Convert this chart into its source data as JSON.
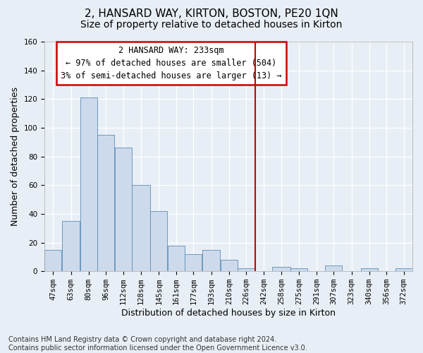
{
  "title": "2, HANSARD WAY, KIRTON, BOSTON, PE20 1QN",
  "subtitle": "Size of property relative to detached houses in Kirton",
  "xlabel": "Distribution of detached houses by size in Kirton",
  "ylabel": "Number of detached properties",
  "footer_line1": "Contains HM Land Registry data © Crown copyright and database right 2024.",
  "footer_line2": "Contains public sector information licensed under the Open Government Licence v3.0.",
  "bar_labels": [
    "47sqm",
    "63sqm",
    "80sqm",
    "96sqm",
    "112sqm",
    "128sqm",
    "145sqm",
    "161sqm",
    "177sqm",
    "193sqm",
    "210sqm",
    "226sqm",
    "242sqm",
    "258sqm",
    "275sqm",
    "291sqm",
    "307sqm",
    "323sqm",
    "340sqm",
    "356sqm",
    "372sqm"
  ],
  "bar_values": [
    15,
    35,
    121,
    95,
    86,
    60,
    42,
    18,
    12,
    15,
    8,
    2,
    0,
    3,
    2,
    0,
    4,
    0,
    2,
    0,
    2
  ],
  "bar_color": "#cddaeb",
  "bar_edge_color": "#5b8db8",
  "background_color": "#e8eef5",
  "grid_color": "#ffffff",
  "vline_x": 242,
  "bin_edges": [
    47,
    63,
    80,
    96,
    112,
    128,
    145,
    161,
    177,
    193,
    210,
    226,
    242,
    258,
    275,
    291,
    307,
    323,
    340,
    356,
    372,
    388
  ],
  "annotation_title": "2 HANSARD WAY: 233sqm",
  "annotation_line1": "← 97% of detached houses are smaller (504)",
  "annotation_line2": "3% of semi-detached houses are larger (13) →",
  "annotation_box_color": "#ffffff",
  "annotation_edge_color": "#cc0000",
  "vline_color": "#cc0000",
  "ylim": [
    0,
    160
  ],
  "yticks": [
    0,
    20,
    40,
    60,
    80,
    100,
    120,
    140,
    160
  ],
  "title_fontsize": 11,
  "subtitle_fontsize": 10,
  "axis_label_fontsize": 9,
  "tick_fontsize": 7.5,
  "annotation_fontsize": 8.5,
  "footer_fontsize": 7
}
